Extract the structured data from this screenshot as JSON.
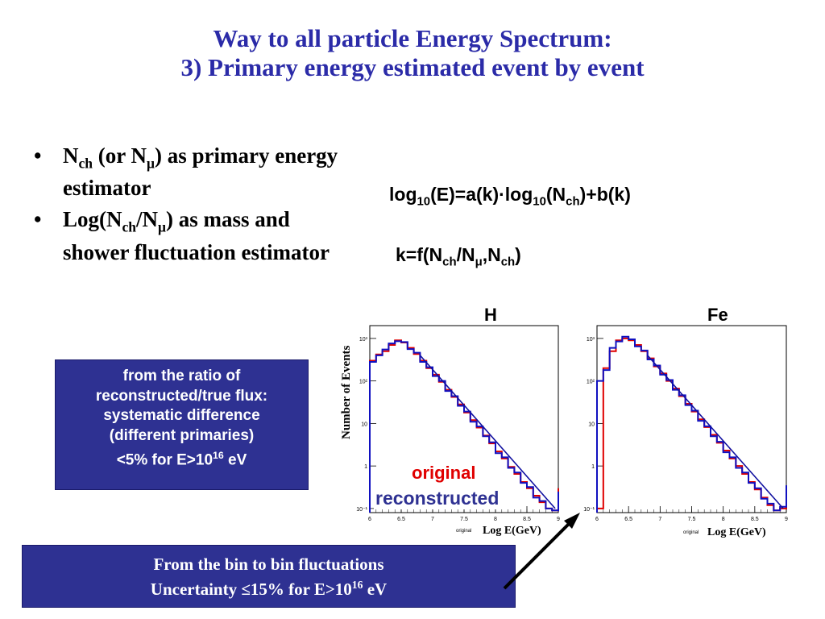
{
  "title": {
    "line1": "Way to all particle Energy Spectrum:",
    "line2": "3) Primary energy estimated event by event"
  },
  "bullets": [
    {
      "pre": "N",
      "sub1": "ch",
      "mid": " (or N",
      "sub2": "μ",
      "post": ") as primary energy estimator"
    },
    {
      "pre": "Log(N",
      "sub1": "ch",
      "mid": "/N",
      "sub2": "μ",
      "post": ") as mass and shower fluctuation estimator"
    }
  ],
  "formula1": {
    "a": "log",
    "s1": "10",
    "b": "(E)=a(k)·log",
    "s2": "10",
    "c": "(N",
    "s3": "ch",
    "d": ")+b(k)"
  },
  "formula2": {
    "a": "k=f(N",
    "s1": "ch",
    "b": "/N",
    "s2": "μ",
    "c": ",N",
    "s3": "ch",
    "d": ")"
  },
  "box1": {
    "line1": "from the ratio of",
    "line2": "reconstructed/true flux:",
    "line3": "systematic difference",
    "line4": "(different primaries)",
    "line5_pre": "<5% for E>10",
    "line5_sup": "16",
    "line5_post": " eV"
  },
  "box2": {
    "line1": "From the bin to bin fluctuations",
    "line2_pre": "Uncertainty ≤15% for E>10",
    "line2_sup": "16",
    "line2_post": " eV"
  },
  "plots": {
    "h_title": "H",
    "fe_title": "Fe",
    "ylabel": "Number of Events",
    "xlabel": "Log E(GeV)",
    "tiny_label": "original",
    "legend_original": "original",
    "legend_reconstructed": "reconstructed",
    "x_ticks": [
      "6",
      "6.5",
      "7",
      "7.5",
      "8",
      "8.5",
      "9"
    ],
    "h_y_ticks": [
      "10⁻¹",
      "1",
      "10",
      "10²",
      "10³"
    ],
    "fe_y_ticks": [
      "10⁻¹",
      "1",
      "10",
      "10²",
      "10³"
    ],
    "colors": {
      "original": "#e00000",
      "reconstructed": "#1010c0",
      "fit": "#1010a0"
    }
  },
  "chart_data": [
    {
      "type": "line",
      "title": "H",
      "xlabel": "Log E(GeV)",
      "ylabel": "Number of Events",
      "log_y": true,
      "xlim": [
        6,
        9
      ],
      "ylim": [
        0.08,
        2000
      ],
      "x": [
        6.0,
        6.1,
        6.2,
        6.3,
        6.4,
        6.5,
        6.6,
        6.7,
        6.8,
        6.9,
        7.0,
        7.1,
        7.2,
        7.3,
        7.4,
        7.5,
        7.6,
        7.7,
        7.8,
        7.9,
        8.0,
        8.1,
        8.2,
        8.3,
        8.4,
        8.5,
        8.6,
        8.7,
        8.8,
        8.9,
        9.0
      ],
      "series": [
        {
          "name": "original",
          "color": "#e00000",
          "values": [
            300,
            420,
            500,
            700,
            900,
            800,
            600,
            430,
            300,
            200,
            140,
            95,
            62,
            42,
            28,
            18,
            12,
            8,
            5.2,
            3.4,
            2.2,
            1.5,
            0.95,
            0.65,
            0.42,
            0.3,
            0.2,
            0.14,
            0.1,
            0.09,
            0.3
          ]
        },
        {
          "name": "reconstructed",
          "color": "#1010c0",
          "values": [
            280,
            400,
            550,
            760,
            860,
            820,
            560,
            460,
            280,
            210,
            130,
            100,
            58,
            44,
            26,
            19,
            11,
            8.5,
            5,
            3.6,
            2,
            1.6,
            0.9,
            0.7,
            0.4,
            0.32,
            0.18,
            0.15,
            0.1,
            0.09,
            0.25
          ]
        }
      ]
    },
    {
      "type": "line",
      "title": "Fe",
      "xlabel": "Log E(GeV)",
      "ylabel": "Number of Events",
      "log_y": true,
      "xlim": [
        6,
        9
      ],
      "ylim": [
        0.08,
        2000
      ],
      "x": [
        6.0,
        6.1,
        6.2,
        6.3,
        6.4,
        6.5,
        6.6,
        6.7,
        6.8,
        6.9,
        7.0,
        7.1,
        7.2,
        7.3,
        7.4,
        7.5,
        7.6,
        7.7,
        7.8,
        7.9,
        8.0,
        8.1,
        8.2,
        8.3,
        8.4,
        8.5,
        8.6,
        8.7,
        8.8,
        8.9,
        9.0
      ],
      "series": [
        {
          "name": "original",
          "color": "#e00000",
          "values": [
            0.1,
            200,
            500,
            900,
            1000,
            900,
            700,
            500,
            340,
            220,
            150,
            100,
            66,
            44,
            29,
            19,
            12.5,
            8.2,
            5.4,
            3.5,
            2.3,
            1.5,
            1,
            0.65,
            0.42,
            0.28,
            0.18,
            0.12,
            0.09,
            0.1,
            0.3
          ]
        },
        {
          "name": "reconstructed",
          "color": "#1010c0",
          "values": [
            100,
            180,
            600,
            850,
            1100,
            950,
            650,
            520,
            320,
            230,
            140,
            105,
            62,
            46,
            27,
            20,
            11.5,
            8.6,
            5,
            3.7,
            2.1,
            1.6,
            0.9,
            0.7,
            0.4,
            0.3,
            0.17,
            0.13,
            0.09,
            0.11,
            0.35
          ]
        }
      ]
    }
  ]
}
